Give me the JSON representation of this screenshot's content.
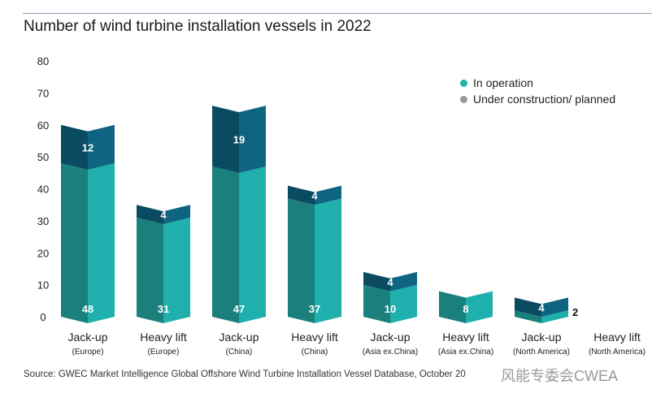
{
  "chart_data": {
    "type": "bar",
    "stacked": true,
    "title": "Number of wind turbine installation vessels in 2022",
    "ylim": [
      0,
      80
    ],
    "yticks": [
      0,
      10,
      20,
      30,
      40,
      50,
      60,
      70,
      80
    ],
    "categories": [
      {
        "name": "Jack-up",
        "sub": "(Europe)"
      },
      {
        "name": "Heavy lift",
        "sub": "(Europe)"
      },
      {
        "name": "Jack-up",
        "sub": "(China)"
      },
      {
        "name": "Heavy lift",
        "sub": "(China)"
      },
      {
        "name": "Jack-up",
        "sub": "(Asia ex.China)"
      },
      {
        "name": "Heavy lift",
        "sub": "(Asia ex.China)"
      },
      {
        "name": "Jack-up",
        "sub": "(North America)"
      },
      {
        "name": "Heavy lift",
        "sub": "(North America)"
      }
    ],
    "series": [
      {
        "name": "In operation",
        "values": [
          48,
          31,
          47,
          37,
          10,
          8,
          2,
          0
        ],
        "color": "#1fb0ad",
        "dark": "#1b7f7c"
      },
      {
        "name": "Under construction/ planned",
        "values": [
          12,
          4,
          19,
          4,
          4,
          0,
          4,
          0
        ],
        "color": "#0e6481",
        "dark": "#0a4b62",
        "legend_color": "#999999"
      }
    ],
    "legend_position": "top-right"
  },
  "source": "Source: GWEC Market Intelligence Global Offshore Wind Turbine Installation Vessel Database, October 20",
  "watermark": "风能专委会CWEA"
}
